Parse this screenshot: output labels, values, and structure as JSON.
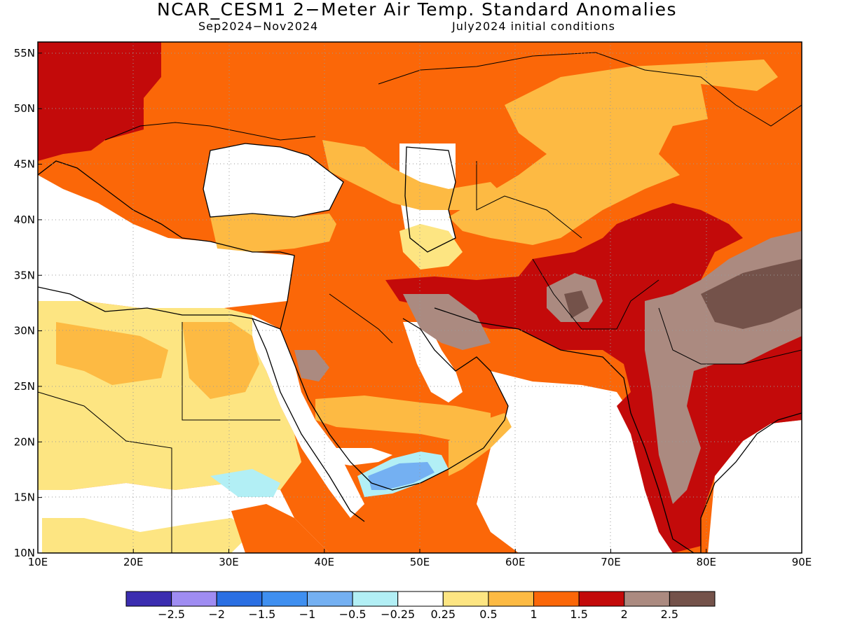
{
  "title": "NCAR_CESM1 2−Meter Air Temp. Standard Anomalies",
  "subtitle_left": "Sep2024−Nov2024",
  "subtitle_right": "July2024 initial conditions",
  "map": {
    "lon_range": [
      10,
      90
    ],
    "lat_range": [
      10,
      56
    ],
    "lon_ticks": [
      "10E",
      "20E",
      "30E",
      "40E",
      "50E",
      "60E",
      "70E",
      "80E",
      "90E"
    ],
    "lat_ticks": [
      "10N",
      "15N",
      "20N",
      "25N",
      "30N",
      "35N",
      "40N",
      "45N",
      "50N",
      "55N"
    ],
    "grid": "dotted"
  },
  "colorbar": {
    "colors": [
      "#3b2db0",
      "#9f8cf2",
      "#2a6fe3",
      "#3f8ff0",
      "#74b0f2",
      "#b2eff5",
      "#ffffff",
      "#fde582",
      "#fdba43",
      "#fb6708",
      "#c30a0a",
      "#ab8a80",
      "#74524a"
    ],
    "labels": [
      "−2.5",
      "−2",
      "−1.5",
      "−1",
      "−0.5",
      "−0.25",
      "0.25",
      "0.5",
      "1",
      "1.5",
      "2",
      "2.5"
    ]
  }
}
